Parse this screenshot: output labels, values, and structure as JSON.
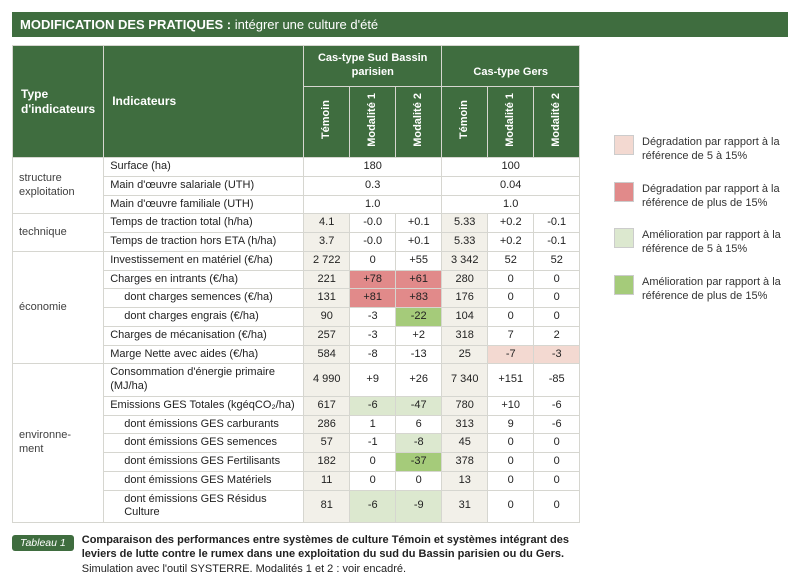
{
  "title": {
    "strong": "MODIFICATION DES PRATIQUES :",
    "rest": " intégrer une culture d'été"
  },
  "colors": {
    "degrad_minor": "#f3d9d1",
    "degrad_major": "#e18a8a",
    "improv_minor": "#dce8cf",
    "improv_major": "#a5cb7a",
    "header_green": "#3f6d3f",
    "bg_alt": "#f2f0e9"
  },
  "table": {
    "header": {
      "type": "Type d'indicateurs",
      "indicateurs": "Indicateurs",
      "group_sud": "Cas-type Sud Bassin parisien",
      "group_gers": "Cas-type Gers",
      "sub": [
        "Témoin",
        "Modalité 1",
        "Modalité 2",
        "Témoin",
        "Modalité 1",
        "Modalité 2"
      ]
    },
    "groups": [
      {
        "label": "structure exploitation",
        "rows": [
          {
            "label": "Surface (ha)",
            "merged": true,
            "v_sud": "180",
            "v_gers": "100"
          },
          {
            "label": "Main d'œuvre salariale (UTH)",
            "merged": true,
            "v_sud": "0.3",
            "v_gers": "0.04"
          },
          {
            "label": "Main d'œuvre familiale (UTH)",
            "merged": true,
            "v_sud": "1.0",
            "v_gers": "1.0"
          }
        ]
      },
      {
        "label": "technique",
        "rows": [
          {
            "label": "Temps de traction total (h/ha)",
            "cells": [
              {
                "v": "4.1",
                "bg": "bg_alt"
              },
              {
                "v": "-0.0"
              },
              {
                "v": "+0.1"
              },
              {
                "v": "5.33",
                "bg": "bg_alt"
              },
              {
                "v": "+0.2"
              },
              {
                "v": "-0.1"
              }
            ]
          },
          {
            "label": "Temps de traction hors ETA (h/ha)",
            "cells": [
              {
                "v": "3.7",
                "bg": "bg_alt"
              },
              {
                "v": "-0.0"
              },
              {
                "v": "+0.1"
              },
              {
                "v": "5.33",
                "bg": "bg_alt"
              },
              {
                "v": "+0.2"
              },
              {
                "v": "-0.1"
              }
            ]
          }
        ]
      },
      {
        "label": "économie",
        "rows": [
          {
            "label": "Investissement en matériel (€/ha)",
            "cells": [
              {
                "v": "2 722",
                "bg": "bg_alt"
              },
              {
                "v": "0"
              },
              {
                "v": "+55"
              },
              {
                "v": "3 342",
                "bg": "bg_alt"
              },
              {
                "v": "52"
              },
              {
                "v": "52"
              }
            ]
          },
          {
            "label": "Charges en intrants (€/ha)",
            "cells": [
              {
                "v": "221",
                "bg": "bg_alt"
              },
              {
                "v": "+78",
                "bg": "degrad_major"
              },
              {
                "v": "+61",
                "bg": "degrad_major"
              },
              {
                "v": "280",
                "bg": "bg_alt"
              },
              {
                "v": "0"
              },
              {
                "v": "0"
              }
            ]
          },
          {
            "label": "dont charges semences (€/ha)",
            "sub": true,
            "cells": [
              {
                "v": "131",
                "bg": "bg_alt"
              },
              {
                "v": "+81",
                "bg": "degrad_major"
              },
              {
                "v": "+83",
                "bg": "degrad_major"
              },
              {
                "v": "176",
                "bg": "bg_alt"
              },
              {
                "v": "0"
              },
              {
                "v": "0"
              }
            ]
          },
          {
            "label": "dont charges engrais (€/ha)",
            "sub": true,
            "cells": [
              {
                "v": "90",
                "bg": "bg_alt"
              },
              {
                "v": "-3"
              },
              {
                "v": "-22",
                "bg": "improv_major"
              },
              {
                "v": "104",
                "bg": "bg_alt"
              },
              {
                "v": "0"
              },
              {
                "v": "0"
              }
            ]
          },
          {
            "label": "Charges de mécanisation (€/ha)",
            "cells": [
              {
                "v": "257",
                "bg": "bg_alt"
              },
              {
                "v": "-3"
              },
              {
                "v": "+2"
              },
              {
                "v": "318",
                "bg": "bg_alt"
              },
              {
                "v": "7"
              },
              {
                "v": "2"
              }
            ]
          },
          {
            "label": "Marge Nette avec aides (€/ha)",
            "cells": [
              {
                "v": "584",
                "bg": "bg_alt"
              },
              {
                "v": "-8"
              },
              {
                "v": "-13"
              },
              {
                "v": "25",
                "bg": "bg_alt"
              },
              {
                "v": "-7",
                "bg": "degrad_minor"
              },
              {
                "v": "-3",
                "bg": "degrad_minor"
              }
            ]
          }
        ]
      },
      {
        "label": "environne-ment",
        "rows": [
          {
            "label": "Consommation d'énergie primaire (MJ/ha)",
            "cells": [
              {
                "v": "4 990",
                "bg": "bg_alt"
              },
              {
                "v": "+9"
              },
              {
                "v": "+26"
              },
              {
                "v": "7 340",
                "bg": "bg_alt"
              },
              {
                "v": "+151"
              },
              {
                "v": "-85"
              }
            ]
          },
          {
            "label": "Emissions GES Totales (kgéqCO₂/ha)",
            "cells": [
              {
                "v": "617",
                "bg": "bg_alt"
              },
              {
                "v": "-6",
                "bg": "improv_minor"
              },
              {
                "v": "-47",
                "bg": "improv_minor"
              },
              {
                "v": "780",
                "bg": "bg_alt"
              },
              {
                "v": "+10"
              },
              {
                "v": "-6"
              }
            ]
          },
          {
            "label": "dont émissions GES carburants",
            "sub": true,
            "cells": [
              {
                "v": "286",
                "bg": "bg_alt"
              },
              {
                "v": "1"
              },
              {
                "v": "6"
              },
              {
                "v": "313",
                "bg": "bg_alt"
              },
              {
                "v": "9"
              },
              {
                "v": "-6"
              }
            ]
          },
          {
            "label": "dont émissions GES semences",
            "sub": true,
            "cells": [
              {
                "v": "57",
                "bg": "bg_alt"
              },
              {
                "v": "-1"
              },
              {
                "v": "-8",
                "bg": "improv_minor"
              },
              {
                "v": "45",
                "bg": "bg_alt"
              },
              {
                "v": "0"
              },
              {
                "v": "0"
              }
            ]
          },
          {
            "label": "dont émissions GES Fertilisants",
            "sub": true,
            "cells": [
              {
                "v": "182",
                "bg": "bg_alt"
              },
              {
                "v": "0"
              },
              {
                "v": "-37",
                "bg": "improv_major"
              },
              {
                "v": "378",
                "bg": "bg_alt"
              },
              {
                "v": "0"
              },
              {
                "v": "0"
              }
            ]
          },
          {
            "label": "dont émissions GES Matériels",
            "sub": true,
            "cells": [
              {
                "v": "11",
                "bg": "bg_alt"
              },
              {
                "v": "0"
              },
              {
                "v": "0"
              },
              {
                "v": "13",
                "bg": "bg_alt"
              },
              {
                "v": "0"
              },
              {
                "v": "0"
              }
            ]
          },
          {
            "label": "dont émissions GES Résidus Culture",
            "sub": true,
            "cells": [
              {
                "v": "81",
                "bg": "bg_alt"
              },
              {
                "v": "-6",
                "bg": "improv_minor"
              },
              {
                "v": "-9",
                "bg": "improv_minor"
              },
              {
                "v": "31",
                "bg": "bg_alt"
              },
              {
                "v": "0"
              },
              {
                "v": "0"
              }
            ]
          }
        ]
      }
    ]
  },
  "caption": {
    "badge": "Tableau 1",
    "bold": "Comparaison des performances entre systèmes de culture Témoin et systèmes intégrant des leviers de lutte contre le rumex dans une exploitation du sud du Bassin parisien ou du Gers.",
    "rest": " Simulation avec l'outil SYSTERRE. Modalités 1 et 2 : voir encadré."
  },
  "legend": [
    {
      "swatch": "degrad_minor",
      "text": "Dégradation par rapport à la référence de 5 à 15%"
    },
    {
      "swatch": "degrad_major",
      "text": "Dégradation par rapport à la référence de plus de 15%"
    },
    {
      "swatch": "improv_minor",
      "text": "Amélioration par rapport à la référence de 5 à 15%"
    },
    {
      "swatch": "improv_major",
      "text": "Amélioration par rapport à la référence de plus de 15%"
    }
  ]
}
